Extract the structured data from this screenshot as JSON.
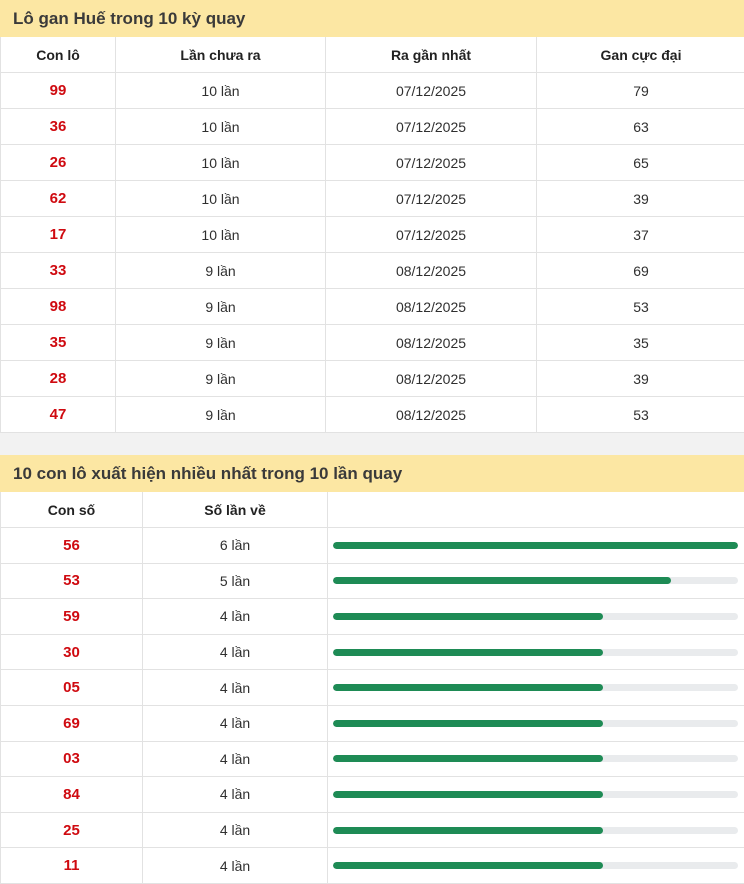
{
  "colors": {
    "title_bg": "#fce7a3",
    "number_red": "#cf0a10",
    "bar_green": "#1e8b55",
    "bar_track": "#e9ebed",
    "border": "#e2e2e2",
    "gap_bg": "#f2f2f2"
  },
  "gan_table": {
    "title": "Lô gan Huế trong 10 kỳ quay",
    "columns": [
      "Con lô",
      "Lần chưa ra",
      "Ra gần nhất",
      "Gan cực đại"
    ],
    "rows": [
      {
        "number": "99",
        "missed": "10 lần",
        "last_seen": "07/12/2025",
        "max_gan": "79"
      },
      {
        "number": "36",
        "missed": "10 lần",
        "last_seen": "07/12/2025",
        "max_gan": "63"
      },
      {
        "number": "26",
        "missed": "10 lần",
        "last_seen": "07/12/2025",
        "max_gan": "65"
      },
      {
        "number": "62",
        "missed": "10 lần",
        "last_seen": "07/12/2025",
        "max_gan": "39"
      },
      {
        "number": "17",
        "missed": "10 lần",
        "last_seen": "07/12/2025",
        "max_gan": "37"
      },
      {
        "number": "33",
        "missed": "9 lần",
        "last_seen": "08/12/2025",
        "max_gan": "69"
      },
      {
        "number": "98",
        "missed": "9 lần",
        "last_seen": "08/12/2025",
        "max_gan": "53"
      },
      {
        "number": "35",
        "missed": "9 lần",
        "last_seen": "08/12/2025",
        "max_gan": "35"
      },
      {
        "number": "28",
        "missed": "9 lần",
        "last_seen": "08/12/2025",
        "max_gan": "39"
      },
      {
        "number": "47",
        "missed": "9 lần",
        "last_seen": "08/12/2025",
        "max_gan": "53"
      }
    ]
  },
  "frequency_table": {
    "title": "10 con lô xuất hiện nhiều nhất trong 10 lần quay",
    "columns": [
      "Con số",
      "Số lần về"
    ],
    "max_value": 6,
    "rows": [
      {
        "number": "56",
        "label": "6 lần",
        "value": 6
      },
      {
        "number": "53",
        "label": "5 lần",
        "value": 5
      },
      {
        "number": "59",
        "label": "4 lần",
        "value": 4
      },
      {
        "number": "30",
        "label": "4 lần",
        "value": 4
      },
      {
        "number": "05",
        "label": "4 lần",
        "value": 4
      },
      {
        "number": "69",
        "label": "4 lần",
        "value": 4
      },
      {
        "number": "03",
        "label": "4 lần",
        "value": 4
      },
      {
        "number": "84",
        "label": "4 lần",
        "value": 4
      },
      {
        "number": "25",
        "label": "4 lần",
        "value": 4
      },
      {
        "number": "11",
        "label": "4 lần",
        "value": 4
      }
    ]
  },
  "chart_data": {
    "type": "bar",
    "orientation": "horizontal",
    "title": "10 con lô xuất hiện nhiều nhất trong 10 lần quay",
    "categories": [
      "56",
      "53",
      "59",
      "30",
      "05",
      "69",
      "03",
      "84",
      "25",
      "11"
    ],
    "values": [
      6,
      5,
      4,
      4,
      4,
      4,
      4,
      4,
      4,
      4
    ],
    "xlabel": "Số lần về",
    "xlim": [
      0,
      6
    ],
    "legend": "none",
    "grid": "off",
    "bar_color": "#1e8b55",
    "track_color": "#e9ebed"
  }
}
